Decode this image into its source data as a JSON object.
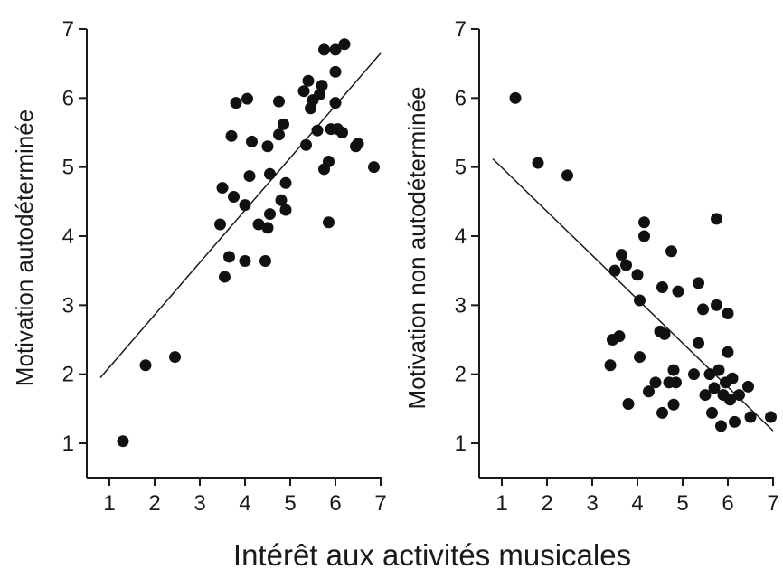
{
  "figure": {
    "shared_xlabel": "Intérêt aux activités musicales"
  },
  "chart_data": [
    {
      "type": "scatter",
      "ylabel": "Motivation autodéterminée",
      "xlim": [
        0.7,
        7
      ],
      "ylim": [
        0.5,
        7
      ],
      "xticks": [
        1,
        2,
        3,
        4,
        5,
        6,
        7
      ],
      "yticks": [
        1,
        2,
        3,
        4,
        5,
        6,
        7
      ],
      "grid": false,
      "trendline": {
        "x": [
          0.8,
          7.0
        ],
        "y": [
          1.95,
          6.65
        ]
      },
      "points": [
        [
          1.3,
          1.03
        ],
        [
          1.8,
          2.13
        ],
        [
          2.45,
          2.25
        ],
        [
          3.45,
          4.17
        ],
        [
          3.5,
          4.7
        ],
        [
          3.55,
          3.41
        ],
        [
          3.65,
          3.7
        ],
        [
          3.7,
          5.45
        ],
        [
          3.75,
          4.57
        ],
        [
          3.8,
          5.93
        ],
        [
          4.0,
          3.64
        ],
        [
          4.0,
          4.45
        ],
        [
          4.05,
          5.99
        ],
        [
          4.1,
          4.87
        ],
        [
          4.15,
          5.37
        ],
        [
          4.3,
          4.17
        ],
        [
          4.45,
          3.64
        ],
        [
          4.5,
          4.12
        ],
        [
          4.5,
          5.3
        ],
        [
          4.55,
          4.9
        ],
        [
          4.55,
          4.32
        ],
        [
          4.75,
          5.47
        ],
        [
          4.75,
          5.95
        ],
        [
          4.8,
          4.52
        ],
        [
          4.85,
          5.62
        ],
        [
          4.9,
          4.38
        ],
        [
          4.9,
          4.77
        ],
        [
          5.3,
          6.1
        ],
        [
          5.35,
          5.32
        ],
        [
          5.4,
          6.25
        ],
        [
          5.45,
          5.85
        ],
        [
          5.5,
          5.97
        ],
        [
          5.6,
          5.53
        ],
        [
          5.65,
          6.05
        ],
        [
          5.7,
          6.18
        ],
        [
          5.75,
          4.97
        ],
        [
          5.75,
          6.7
        ],
        [
          5.85,
          4.2
        ],
        [
          5.85,
          5.08
        ],
        [
          5.9,
          5.55
        ],
        [
          6.0,
          6.38
        ],
        [
          6.0,
          6.7
        ],
        [
          6.0,
          5.93
        ],
        [
          6.05,
          5.55
        ],
        [
          6.15,
          5.5
        ],
        [
          6.2,
          6.78
        ],
        [
          6.45,
          5.3
        ],
        [
          6.5,
          5.34
        ],
        [
          6.85,
          5.0
        ]
      ]
    },
    {
      "type": "scatter",
      "ylabel": "Motivation non autodéterminée",
      "xlim": [
        0.7,
        7
      ],
      "ylim": [
        0.5,
        7
      ],
      "xticks": [
        1,
        2,
        3,
        4,
        5,
        6,
        7
      ],
      "yticks": [
        1,
        2,
        3,
        4,
        5,
        6,
        7
      ],
      "grid": false,
      "trendline": {
        "x": [
          0.8,
          7.0
        ],
        "y": [
          5.12,
          1.18
        ]
      },
      "points": [
        [
          1.3,
          6.0
        ],
        [
          1.8,
          5.06
        ],
        [
          2.45,
          4.88
        ],
        [
          3.4,
          2.13
        ],
        [
          3.45,
          2.5
        ],
        [
          3.5,
          3.5
        ],
        [
          3.6,
          2.55
        ],
        [
          3.65,
          3.73
        ],
        [
          3.75,
          3.58
        ],
        [
          3.8,
          1.57
        ],
        [
          4.0,
          3.44
        ],
        [
          4.05,
          2.25
        ],
        [
          4.05,
          3.07
        ],
        [
          4.15,
          4.2
        ],
        [
          4.15,
          4.0
        ],
        [
          4.25,
          1.75
        ],
        [
          4.4,
          1.88
        ],
        [
          4.5,
          2.62
        ],
        [
          4.55,
          1.44
        ],
        [
          4.55,
          3.26
        ],
        [
          4.6,
          2.58
        ],
        [
          4.7,
          1.88
        ],
        [
          4.75,
          3.78
        ],
        [
          4.8,
          1.56
        ],
        [
          4.8,
          2.06
        ],
        [
          4.85,
          1.88
        ],
        [
          4.9,
          3.2
        ],
        [
          5.25,
          2.0
        ],
        [
          5.35,
          3.32
        ],
        [
          5.35,
          2.45
        ],
        [
          5.45,
          2.94
        ],
        [
          5.5,
          1.7
        ],
        [
          5.6,
          2.0
        ],
        [
          5.65,
          1.44
        ],
        [
          5.7,
          1.8
        ],
        [
          5.75,
          3.0
        ],
        [
          5.75,
          4.25
        ],
        [
          5.8,
          2.06
        ],
        [
          5.85,
          1.25
        ],
        [
          5.9,
          1.7
        ],
        [
          5.95,
          1.88
        ],
        [
          6.0,
          2.88
        ],
        [
          6.0,
          2.32
        ],
        [
          6.05,
          1.63
        ],
        [
          6.1,
          1.94
        ],
        [
          6.15,
          1.31
        ],
        [
          6.25,
          1.7
        ],
        [
          6.45,
          1.82
        ],
        [
          6.5,
          1.38
        ],
        [
          6.95,
          1.38
        ]
      ]
    }
  ]
}
